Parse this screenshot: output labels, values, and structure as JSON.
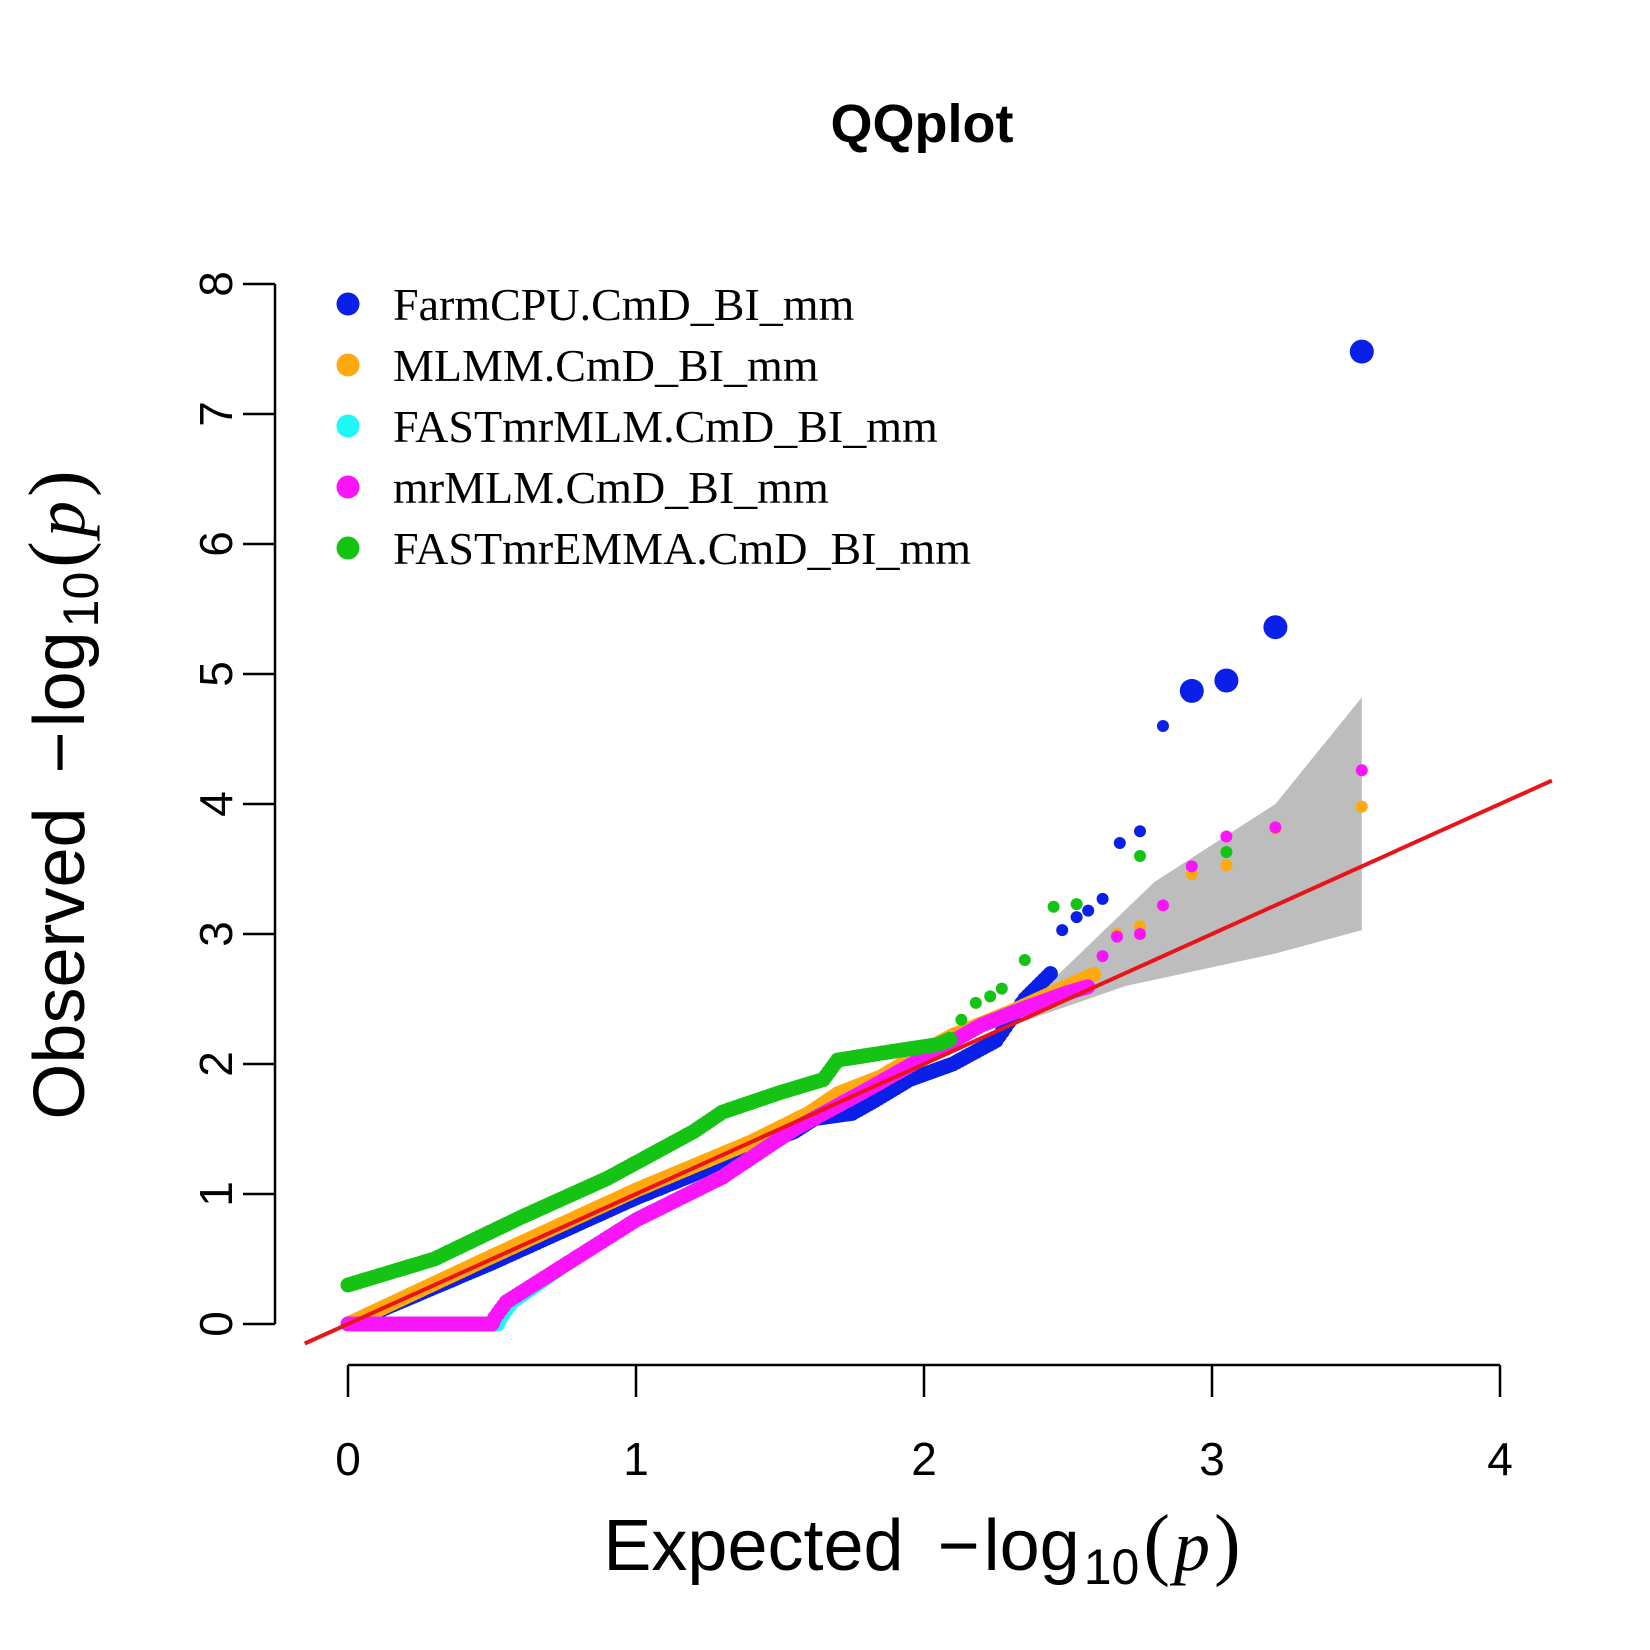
{
  "chart_data": {
    "type": "scatter",
    "title": "QQplot",
    "xlabel": {
      "main": "Expected",
      "minus": "−",
      "log": "log",
      "sub": "10",
      "open": "(",
      "var": "p",
      "close": ")"
    },
    "ylabel": {
      "main": "Observed",
      "minus": "−",
      "log": "log",
      "sub": "10",
      "open": "(",
      "var": "p",
      "close": ")"
    },
    "xlim": [
      0,
      4
    ],
    "ylim": [
      0,
      8
    ],
    "xticks": [
      0,
      1,
      2,
      3,
      4
    ],
    "yticks": [
      0,
      1,
      2,
      3,
      4,
      5,
      6,
      7,
      8
    ],
    "x_tick_labels": [
      "0",
      "1",
      "2",
      "3",
      "4"
    ],
    "y_tick_labels": [
      "0",
      "1",
      "2",
      "3",
      "4",
      "5",
      "6",
      "7",
      "8"
    ],
    "grid": false,
    "legend_position": "top-left",
    "reference_line": {
      "slope": 1,
      "intercept": 0,
      "color": "#e8141a"
    },
    "confidence_band": {
      "color": "#bdbdbd",
      "lower": [
        [
          2.27,
          2.27
        ],
        [
          2.7,
          2.6
        ],
        [
          3.22,
          2.85
        ],
        [
          3.52,
          3.03
        ]
      ],
      "upper": [
        [
          3.52,
          4.82
        ],
        [
          3.22,
          4.0
        ],
        [
          2.8,
          3.4
        ],
        [
          2.27,
          2.27
        ]
      ]
    },
    "series": [
      {
        "name": "FarmCPU.CmD_BI_mm",
        "color": "#0a1fe8",
        "curve": [
          [
            0.0,
            0.0
          ],
          [
            0.5,
            0.47
          ],
          [
            1.0,
            0.97
          ],
          [
            1.2,
            1.15
          ],
          [
            1.4,
            1.35
          ],
          [
            1.55,
            1.48
          ],
          [
            1.62,
            1.58
          ],
          [
            1.75,
            1.62
          ],
          [
            1.83,
            1.72
          ],
          [
            1.95,
            1.88
          ],
          [
            2.1,
            2.0
          ],
          [
            2.25,
            2.18
          ],
          [
            2.35,
            2.5
          ],
          [
            2.45,
            2.72
          ]
        ],
        "points": [
          [
            2.48,
            3.03
          ],
          [
            2.53,
            3.13
          ],
          [
            2.57,
            3.18
          ],
          [
            2.62,
            3.27
          ],
          [
            2.68,
            3.7
          ],
          [
            2.75,
            3.79
          ],
          [
            2.83,
            4.6
          ],
          [
            3.22,
            5.36,
            "large"
          ],
          [
            3.05,
            4.95,
            "large"
          ],
          [
            2.93,
            4.87,
            "large"
          ],
          [
            3.52,
            7.48,
            "large"
          ]
        ]
      },
      {
        "name": "MLMM.CmD_BI_mm",
        "color": "#ffa90f",
        "curve": [
          [
            0.0,
            0.0
          ],
          [
            0.5,
            0.52
          ],
          [
            1.0,
            1.03
          ],
          [
            1.4,
            1.4
          ],
          [
            1.6,
            1.62
          ],
          [
            1.7,
            1.77
          ],
          [
            1.85,
            1.9
          ],
          [
            2.0,
            2.1
          ],
          [
            2.1,
            2.22
          ],
          [
            2.3,
            2.4
          ],
          [
            2.45,
            2.55
          ],
          [
            2.55,
            2.65
          ],
          [
            2.6,
            2.7
          ]
        ],
        "points": [
          [
            2.67,
            3.0
          ],
          [
            2.75,
            3.06
          ],
          [
            2.93,
            3.46
          ],
          [
            3.05,
            3.53
          ],
          [
            3.22,
            3.81
          ],
          [
            3.52,
            3.98
          ]
        ]
      },
      {
        "name": "FASTmrMLM.CmD_BI_mm",
        "color": "#1ff7f7",
        "curve": [
          [
            0.0,
            0.0
          ],
          [
            0.52,
            0.0
          ],
          [
            0.53,
            0.05
          ],
          [
            0.57,
            0.17
          ],
          [
            0.75,
            0.45
          ],
          [
            1.0,
            0.8
          ],
          [
            1.3,
            1.13
          ],
          [
            1.55,
            1.5
          ],
          [
            1.8,
            1.8
          ],
          [
            2.0,
            2.05
          ],
          [
            2.2,
            2.3
          ],
          [
            2.35,
            2.43
          ],
          [
            2.5,
            2.55
          ],
          [
            2.55,
            2.58
          ]
        ],
        "points": []
      },
      {
        "name": "mrMLM.CmD_BI_mm",
        "color": "#fa14fa",
        "curve": [
          [
            0.0,
            0.0
          ],
          [
            0.5,
            0.0
          ],
          [
            0.51,
            0.05
          ],
          [
            0.55,
            0.17
          ],
          [
            0.75,
            0.45
          ],
          [
            1.0,
            0.8
          ],
          [
            1.3,
            1.13
          ],
          [
            1.55,
            1.5
          ],
          [
            1.8,
            1.8
          ],
          [
            2.0,
            2.05
          ],
          [
            2.2,
            2.3
          ],
          [
            2.35,
            2.43
          ],
          [
            2.5,
            2.55
          ],
          [
            2.58,
            2.6
          ]
        ],
        "points": [
          [
            2.62,
            2.83
          ],
          [
            2.67,
            2.98
          ],
          [
            2.75,
            3.0
          ],
          [
            2.83,
            3.22
          ],
          [
            2.93,
            3.52
          ],
          [
            3.05,
            3.75
          ],
          [
            3.22,
            3.82
          ],
          [
            3.52,
            4.26
          ]
        ]
      },
      {
        "name": "FASTmrEMMA.CmD_BI_mm",
        "color": "#14c314",
        "curve": [
          [
            0.0,
            0.3
          ],
          [
            0.3,
            0.5
          ],
          [
            0.6,
            0.82
          ],
          [
            0.9,
            1.12
          ],
          [
            1.2,
            1.48
          ],
          [
            1.3,
            1.63
          ],
          [
            1.5,
            1.78
          ],
          [
            1.65,
            1.88
          ],
          [
            1.7,
            2.03
          ],
          [
            1.9,
            2.1
          ],
          [
            2.05,
            2.15
          ],
          [
            2.1,
            2.2
          ]
        ],
        "points": [
          [
            2.13,
            2.34
          ],
          [
            2.18,
            2.47
          ],
          [
            2.23,
            2.52
          ],
          [
            2.27,
            2.58
          ],
          [
            2.35,
            2.8
          ],
          [
            2.45,
            3.21
          ],
          [
            2.53,
            3.23
          ],
          [
            2.75,
            3.6
          ],
          [
            3.05,
            3.63
          ]
        ]
      }
    ]
  }
}
